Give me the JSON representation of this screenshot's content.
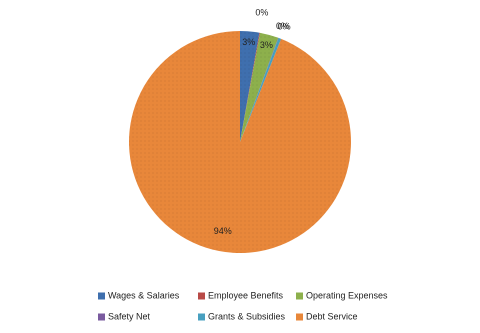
{
  "chart_data": {
    "type": "pie",
    "categories": [
      "Wages & Salaries",
      "Employee Benefits",
      "Operating Expenses",
      "Safety Net",
      "Grants & Subsidies",
      "Debt Service"
    ],
    "values": [
      2.8,
      0.1,
      2.7,
      0.05,
      0.4,
      94
    ],
    "value_labels": [
      "3%",
      "0%",
      "3%",
      "0%",
      "0%",
      "94%"
    ],
    "colors": [
      "#3f6fae",
      "#b84a47",
      "#8db04c",
      "#7a5b9f",
      "#48a0c0",
      "#e8873a"
    ]
  }
}
